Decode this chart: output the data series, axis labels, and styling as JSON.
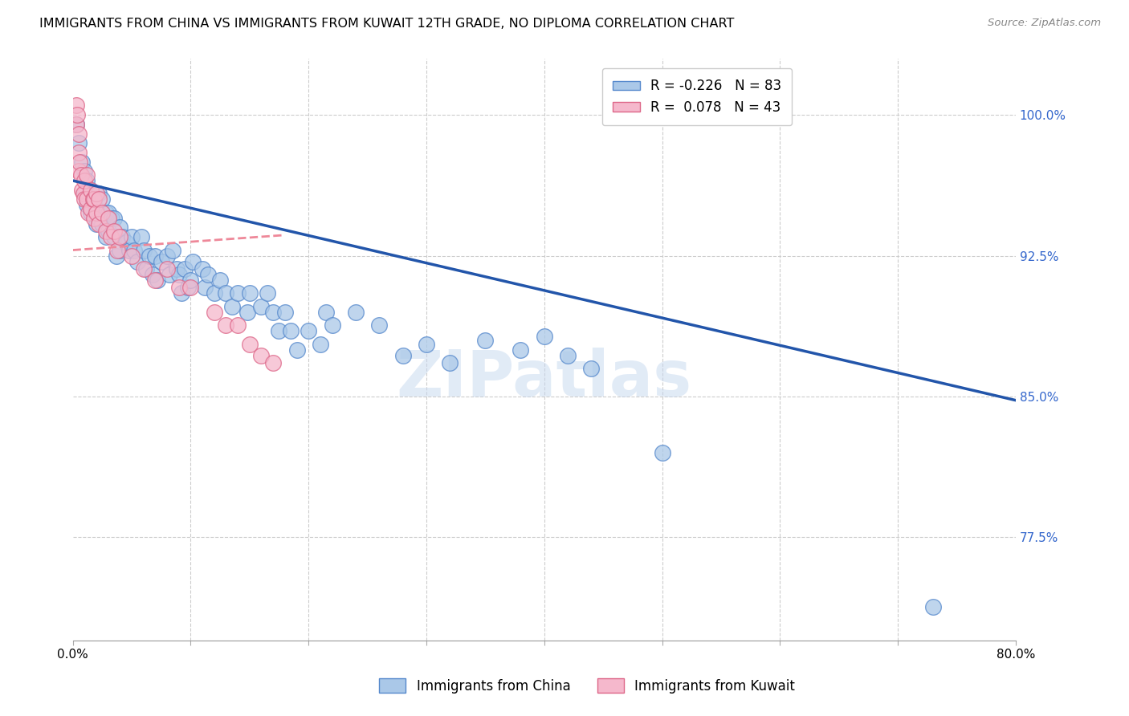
{
  "title": "IMMIGRANTS FROM CHINA VS IMMIGRANTS FROM KUWAIT 12TH GRADE, NO DIPLOMA CORRELATION CHART",
  "source": "Source: ZipAtlas.com",
  "xlabel_china": "Immigrants from China",
  "xlabel_kuwait": "Immigrants from Kuwait",
  "ylabel": "12th Grade, No Diploma",
  "xlim": [
    0.0,
    0.8
  ],
  "ylim": [
    0.72,
    1.03
  ],
  "xticks": [
    0.0,
    0.1,
    0.2,
    0.3,
    0.4,
    0.5,
    0.6,
    0.7,
    0.8
  ],
  "ytick_positions": [
    0.775,
    0.85,
    0.925,
    1.0
  ],
  "ytick_labels": [
    "77.5%",
    "85.0%",
    "92.5%",
    "100.0%"
  ],
  "legend_r_china": "-0.226",
  "legend_n_china": "83",
  "legend_r_kuwait": "0.078",
  "legend_n_kuwait": "43",
  "color_china_fill": "#aac8e8",
  "color_china_edge": "#5588cc",
  "color_kuwait_fill": "#f5b8cc",
  "color_kuwait_edge": "#dd6688",
  "color_china_line": "#2255aa",
  "color_kuwait_line": "#ee8899",
  "watermark_text": "ZIPatlas",
  "china_line_x0": 0.0,
  "china_line_y0": 0.965,
  "china_line_x1": 0.8,
  "china_line_y1": 0.848,
  "kuwait_line_x0": 0.0,
  "kuwait_line_y0": 0.928,
  "kuwait_line_x1": 0.18,
  "kuwait_line_y1": 0.936,
  "china_x": [
    0.003,
    0.005,
    0.008,
    0.01,
    0.01,
    0.012,
    0.012,
    0.015,
    0.015,
    0.018,
    0.02,
    0.02,
    0.022,
    0.022,
    0.025,
    0.025,
    0.028,
    0.028,
    0.03,
    0.03,
    0.033,
    0.035,
    0.035,
    0.037,
    0.04,
    0.04,
    0.042,
    0.045,
    0.048,
    0.05,
    0.052,
    0.055,
    0.058,
    0.06,
    0.062,
    0.065,
    0.068,
    0.07,
    0.072,
    0.075,
    0.08,
    0.082,
    0.085,
    0.088,
    0.09,
    0.092,
    0.095,
    0.098,
    0.1,
    0.102,
    0.11,
    0.112,
    0.115,
    0.12,
    0.125,
    0.13,
    0.135,
    0.14,
    0.148,
    0.15,
    0.16,
    0.165,
    0.17,
    0.175,
    0.18,
    0.185,
    0.19,
    0.2,
    0.21,
    0.215,
    0.22,
    0.24,
    0.26,
    0.28,
    0.3,
    0.32,
    0.35,
    0.38,
    0.4,
    0.42,
    0.44,
    0.5,
    0.73
  ],
  "china_y": [
    0.995,
    0.985,
    0.975,
    0.97,
    0.958,
    0.965,
    0.952,
    0.96,
    0.948,
    0.955,
    0.95,
    0.942,
    0.958,
    0.945,
    0.955,
    0.942,
    0.948,
    0.935,
    0.948,
    0.938,
    0.945,
    0.945,
    0.935,
    0.925,
    0.94,
    0.928,
    0.935,
    0.932,
    0.928,
    0.935,
    0.928,
    0.922,
    0.935,
    0.928,
    0.918,
    0.925,
    0.915,
    0.925,
    0.912,
    0.922,
    0.925,
    0.915,
    0.928,
    0.918,
    0.915,
    0.905,
    0.918,
    0.908,
    0.912,
    0.922,
    0.918,
    0.908,
    0.915,
    0.905,
    0.912,
    0.905,
    0.898,
    0.905,
    0.895,
    0.905,
    0.898,
    0.905,
    0.895,
    0.885,
    0.895,
    0.885,
    0.875,
    0.885,
    0.878,
    0.895,
    0.888,
    0.895,
    0.888,
    0.872,
    0.878,
    0.868,
    0.88,
    0.875,
    0.882,
    0.872,
    0.865,
    0.82,
    0.738
  ],
  "kuwait_x": [
    0.003,
    0.003,
    0.004,
    0.005,
    0.005,
    0.005,
    0.006,
    0.007,
    0.008,
    0.009,
    0.01,
    0.01,
    0.012,
    0.012,
    0.013,
    0.015,
    0.015,
    0.017,
    0.018,
    0.018,
    0.02,
    0.02,
    0.022,
    0.022,
    0.025,
    0.028,
    0.03,
    0.032,
    0.035,
    0.038,
    0.04,
    0.05,
    0.06,
    0.07,
    0.08,
    0.09,
    0.1,
    0.12,
    0.13,
    0.14,
    0.15,
    0.16,
    0.17
  ],
  "kuwait_y": [
    1.005,
    0.995,
    1.0,
    0.99,
    0.98,
    0.97,
    0.975,
    0.968,
    0.96,
    0.958,
    0.965,
    0.955,
    0.968,
    0.955,
    0.948,
    0.96,
    0.95,
    0.955,
    0.955,
    0.945,
    0.958,
    0.948,
    0.955,
    0.942,
    0.948,
    0.938,
    0.945,
    0.935,
    0.938,
    0.928,
    0.935,
    0.925,
    0.918,
    0.912,
    0.918,
    0.908,
    0.908,
    0.895,
    0.888,
    0.888,
    0.878,
    0.872,
    0.868
  ]
}
